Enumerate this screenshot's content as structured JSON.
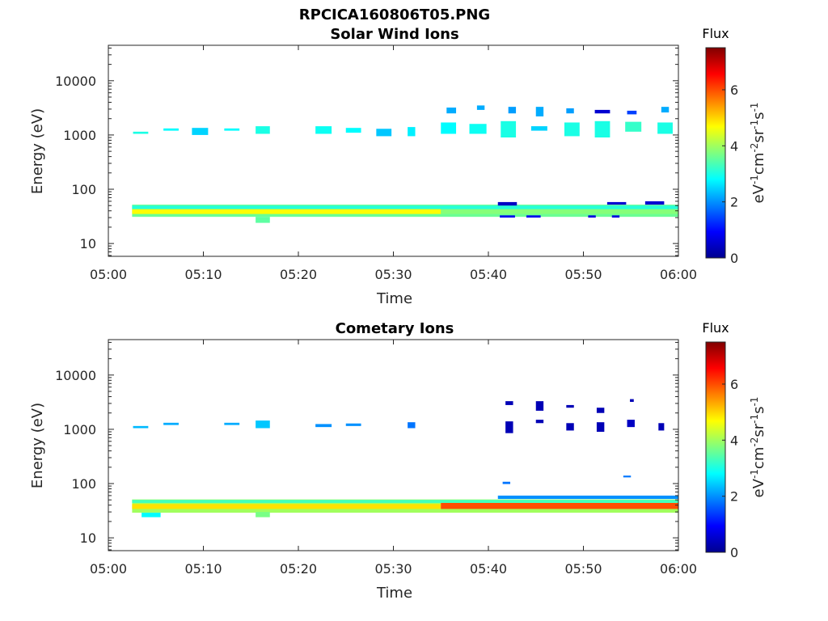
{
  "figure": {
    "filename": "RPCICA160806T05.PNG"
  },
  "chart_data": [
    {
      "type": "heatmap",
      "title": "Solar Wind Ions",
      "xlabel": "Time",
      "ylabel": "Energy (eV)",
      "x_range_minutes": [
        0,
        60
      ],
      "x_ticks": [
        "05:00",
        "05:10",
        "05:20",
        "05:30",
        "05:40",
        "05:50",
        "06:00"
      ],
      "yscale": "log",
      "ylim": [
        5.8,
        45000
      ],
      "y_ticks": [
        "10",
        "100",
        "1000",
        "10000"
      ],
      "colorbar": {
        "title": "Flux",
        "label": "eV-1cm-2sr-1s-1",
        "min": 0,
        "max": 7.5,
        "ticks": [
          "0",
          "2",
          "4",
          "6"
        ],
        "colormap": "jet"
      },
      "cells": [
        {
          "t0": 2.6,
          "t1": 4.2,
          "e0": 1050,
          "e1": 1150,
          "v": 3.0
        },
        {
          "t0": 5.8,
          "t1": 7.4,
          "e0": 1200,
          "e1": 1320,
          "v": 2.8
        },
        {
          "t0": 8.8,
          "t1": 10.5,
          "e0": 1000,
          "e1": 1350,
          "v": 2.5
        },
        {
          "t0": 12.2,
          "t1": 13.8,
          "e0": 1200,
          "e1": 1320,
          "v": 2.8
        },
        {
          "t0": 15.5,
          "t1": 17.0,
          "e0": 1050,
          "e1": 1450,
          "v": 3.0
        },
        {
          "t0": 21.8,
          "t1": 23.5,
          "e0": 1050,
          "e1": 1450,
          "v": 2.9
        },
        {
          "t0": 25.0,
          "t1": 26.6,
          "e0": 1100,
          "e1": 1350,
          "v": 2.8
        },
        {
          "t0": 28.2,
          "t1": 29.8,
          "e0": 950,
          "e1": 1300,
          "v": 2.4
        },
        {
          "t0": 31.5,
          "t1": 32.3,
          "e0": 950,
          "e1": 1400,
          "v": 2.7
        },
        {
          "t0": 35.0,
          "t1": 36.6,
          "e0": 1050,
          "e1": 1700,
          "v": 2.8
        },
        {
          "t0": 35.6,
          "t1": 36.6,
          "e0": 2500,
          "e1": 3200,
          "v": 2.2
        },
        {
          "t0": 38.0,
          "t1": 39.8,
          "e0": 1050,
          "e1": 1600,
          "v": 2.9
        },
        {
          "t0": 38.8,
          "t1": 39.6,
          "e0": 2900,
          "e1": 3500,
          "v": 2.2
        },
        {
          "t0": 41.3,
          "t1": 42.9,
          "e0": 900,
          "e1": 1800,
          "v": 3.0
        },
        {
          "t0": 42.1,
          "t1": 42.9,
          "e0": 2500,
          "e1": 3300,
          "v": 2.1
        },
        {
          "t0": 44.5,
          "t1": 46.2,
          "e0": 1200,
          "e1": 1450,
          "v": 2.5
        },
        {
          "t0": 45.0,
          "t1": 45.8,
          "e0": 2200,
          "e1": 3300,
          "v": 2.2
        },
        {
          "t0": 48.0,
          "t1": 49.6,
          "e0": 950,
          "e1": 1700,
          "v": 3.0
        },
        {
          "t0": 48.2,
          "t1": 49.0,
          "e0": 2500,
          "e1": 3100,
          "v": 2.1
        },
        {
          "t0": 51.2,
          "t1": 52.8,
          "e0": 900,
          "e1": 1800,
          "v": 3.0
        },
        {
          "t0": 51.2,
          "t1": 52.8,
          "e0": 2500,
          "e1": 2900,
          "v": 0.6
        },
        {
          "t0": 54.4,
          "t1": 56.1,
          "e0": 1150,
          "e1": 1750,
          "v": 3.2
        },
        {
          "t0": 54.6,
          "t1": 55.6,
          "e0": 2400,
          "e1": 2800,
          "v": 1.4
        },
        {
          "t0": 57.8,
          "t1": 59.4,
          "e0": 1050,
          "e1": 1700,
          "v": 3.0
        },
        {
          "t0": 58.2,
          "t1": 59.0,
          "e0": 2600,
          "e1": 3300,
          "v": 2.2
        },
        {
          "t0": 2.5,
          "t1": 60,
          "e0": 31,
          "e1": 52,
          "v": 3.6
        },
        {
          "t0": 2.5,
          "t1": 35,
          "e0": 35,
          "e1": 43,
          "v": 4.7
        },
        {
          "t0": 35.0,
          "t1": 60,
          "e0": 35,
          "e1": 43,
          "v": 3.8
        },
        {
          "t0": 2.5,
          "t1": 60,
          "e0": 43,
          "e1": 50,
          "v": 3.1
        },
        {
          "t0": 15.5,
          "t1": 17.0,
          "e0": 24,
          "e1": 31,
          "v": 3.5
        },
        {
          "t0": 41.2,
          "t1": 42.8,
          "e0": 30,
          "e1": 33,
          "v": 0.8
        },
        {
          "t0": 44.0,
          "t1": 45.5,
          "e0": 30,
          "e1": 33,
          "v": 0.8
        },
        {
          "t0": 50.5,
          "t1": 51.3,
          "e0": 30,
          "e1": 33,
          "v": 0.7
        },
        {
          "t0": 53.0,
          "t1": 53.8,
          "e0": 30,
          "e1": 33,
          "v": 0.7
        },
        {
          "t0": 41.0,
          "t1": 43.0,
          "e0": 50,
          "e1": 58,
          "v": 0.5
        },
        {
          "t0": 52.5,
          "t1": 54.5,
          "e0": 52,
          "e1": 58,
          "v": 0.6
        },
        {
          "t0": 56.5,
          "t1": 58.5,
          "e0": 52,
          "e1": 60,
          "v": 0.6
        }
      ]
    },
    {
      "type": "heatmap",
      "title": "Cometary Ions",
      "xlabel": "Time",
      "ylabel": "Energy (eV)",
      "x_range_minutes": [
        0,
        60
      ],
      "x_ticks": [
        "05:00",
        "05:10",
        "05:20",
        "05:30",
        "05:40",
        "05:50",
        "06:00"
      ],
      "yscale": "log",
      "ylim": [
        5.8,
        45000
      ],
      "y_ticks": [
        "10",
        "100",
        "1000",
        "10000"
      ],
      "colorbar": {
        "title": "Flux",
        "label": "eV-1cm-2sr-1s-1",
        "min": 0,
        "max": 7.5,
        "ticks": [
          "0",
          "2",
          "4",
          "6"
        ],
        "colormap": "jet"
      },
      "cells": [
        {
          "t0": 2.6,
          "t1": 4.2,
          "e0": 1050,
          "e1": 1150,
          "v": 2.3
        },
        {
          "t0": 5.8,
          "t1": 7.4,
          "e0": 1200,
          "e1": 1320,
          "v": 2.2
        },
        {
          "t0": 12.2,
          "t1": 13.8,
          "e0": 1200,
          "e1": 1320,
          "v": 2.2
        },
        {
          "t0": 15.5,
          "t1": 17.0,
          "e0": 1050,
          "e1": 1450,
          "v": 2.4
        },
        {
          "t0": 21.8,
          "t1": 23.5,
          "e0": 1100,
          "e1": 1250,
          "v": 2.0
        },
        {
          "t0": 25.0,
          "t1": 26.6,
          "e0": 1150,
          "e1": 1280,
          "v": 2.0
        },
        {
          "t0": 31.5,
          "t1": 32.3,
          "e0": 1050,
          "e1": 1350,
          "v": 1.8
        },
        {
          "t0": 41.8,
          "t1": 42.6,
          "e0": 2800,
          "e1": 3300,
          "v": 0.4
        },
        {
          "t0": 41.8,
          "t1": 42.6,
          "e0": 850,
          "e1": 1400,
          "v": 0.4
        },
        {
          "t0": 45.0,
          "t1": 45.8,
          "e0": 2200,
          "e1": 3300,
          "v": 0.4
        },
        {
          "t0": 45.0,
          "t1": 45.8,
          "e0": 1300,
          "e1": 1500,
          "v": 0.4
        },
        {
          "t0": 48.2,
          "t1": 49.0,
          "e0": 2500,
          "e1": 2800,
          "v": 0.4
        },
        {
          "t0": 48.2,
          "t1": 49.0,
          "e0": 950,
          "e1": 1300,
          "v": 0.4
        },
        {
          "t0": 51.4,
          "t1": 52.2,
          "e0": 2000,
          "e1": 2500,
          "v": 0.4
        },
        {
          "t0": 51.4,
          "t1": 52.2,
          "e0": 900,
          "e1": 1350,
          "v": 0.4
        },
        {
          "t0": 54.6,
          "t1": 55.4,
          "e0": 1100,
          "e1": 1500,
          "v": 0.5
        },
        {
          "t0": 54.9,
          "t1": 55.3,
          "e0": 3200,
          "e1": 3600,
          "v": 0.4
        },
        {
          "t0": 57.9,
          "t1": 58.5,
          "e0": 950,
          "e1": 1300,
          "v": 0.4
        },
        {
          "t0": 41.5,
          "t1": 42.3,
          "e0": 98,
          "e1": 108,
          "v": 1.8
        },
        {
          "t0": 54.2,
          "t1": 55.0,
          "e0": 130,
          "e1": 140,
          "v": 1.8
        },
        {
          "t0": 2.5,
          "t1": 60,
          "e0": 29,
          "e1": 51,
          "v": 4.0
        },
        {
          "t0": 2.5,
          "t1": 35,
          "e0": 34,
          "e1": 42,
          "v": 4.9
        },
        {
          "t0": 35.0,
          "t1": 60,
          "e0": 34,
          "e1": 44,
          "v": 6.0
        },
        {
          "t0": 2.5,
          "t1": 60,
          "e0": 44,
          "e1": 50,
          "v": 3.3
        },
        {
          "t0": 15.5,
          "t1": 17.0,
          "e0": 24,
          "e1": 30,
          "v": 3.7
        },
        {
          "t0": 41.0,
          "t1": 60,
          "e0": 52,
          "e1": 60,
          "v": 2.0
        },
        {
          "t0": 3.5,
          "t1": 5.5,
          "e0": 24,
          "e1": 29,
          "v": 2.8
        }
      ]
    }
  ]
}
